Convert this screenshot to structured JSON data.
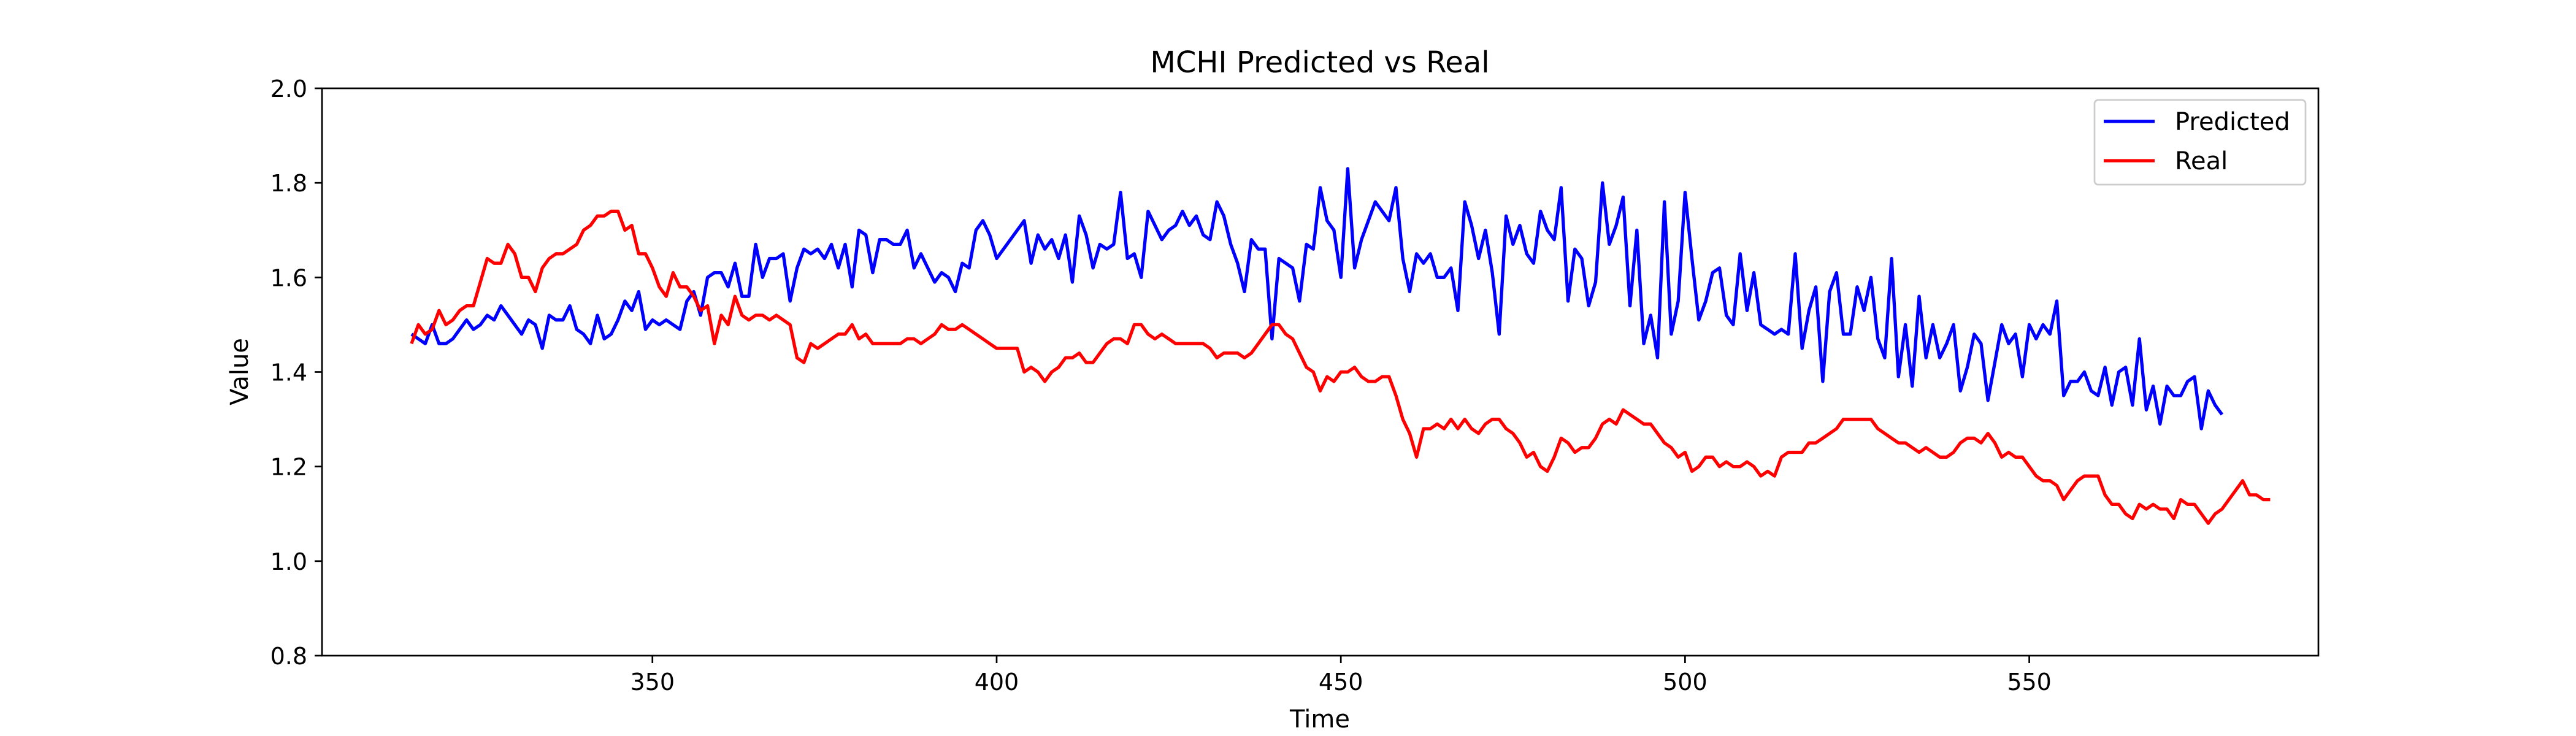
{
  "chart_data": {
    "type": "line",
    "title": "MCHI Predicted vs Real",
    "xlabel": "Time",
    "ylabel": "Value",
    "xlim": [
      302,
      592
    ],
    "ylim": [
      0.8,
      2.0
    ],
    "x_ticks": [
      {
        "value": 350,
        "label": "350"
      },
      {
        "value": 400,
        "label": "400"
      },
      {
        "value": 450,
        "label": "450"
      },
      {
        "value": 500,
        "label": "500"
      },
      {
        "value": 550,
        "label": "550"
      }
    ],
    "y_ticks": [
      {
        "value": 0.8,
        "label": "0.8"
      },
      {
        "value": 1.0,
        "label": "1.0"
      },
      {
        "value": 1.2,
        "label": "1.2"
      },
      {
        "value": 1.4,
        "label": "1.4"
      },
      {
        "value": 1.6,
        "label": "1.6"
      },
      {
        "value": 1.8,
        "label": "1.8"
      },
      {
        "value": 2.0,
        "label": "2.0"
      }
    ],
    "grid": false,
    "legend_position": "top-right",
    "x_start": 315,
    "series": [
      {
        "name": "Predicted",
        "color": "#0000ff",
        "values": [
          1.48,
          1.47,
          1.46,
          1.5,
          1.46,
          1.46,
          1.47,
          1.49,
          1.51,
          1.49,
          1.5,
          1.52,
          1.51,
          1.54,
          1.52,
          1.5,
          1.48,
          1.51,
          1.5,
          1.45,
          1.52,
          1.51,
          1.51,
          1.54,
          1.49,
          1.48,
          1.46,
          1.52,
          1.47,
          1.48,
          1.51,
          1.55,
          1.53,
          1.57,
          1.49,
          1.51,
          1.5,
          1.51,
          1.5,
          1.49,
          1.55,
          1.57,
          1.52,
          1.6,
          1.61,
          1.61,
          1.58,
          1.63,
          1.56,
          1.56,
          1.67,
          1.6,
          1.64,
          1.64,
          1.65,
          1.55,
          1.62,
          1.66,
          1.65,
          1.66,
          1.64,
          1.67,
          1.62,
          1.67,
          1.58,
          1.7,
          1.69,
          1.61,
          1.68,
          1.68,
          1.67,
          1.67,
          1.7,
          1.62,
          1.65,
          1.62,
          1.59,
          1.61,
          1.6,
          1.57,
          1.63,
          1.62,
          1.7,
          1.72,
          1.69,
          1.64,
          1.66,
          1.68,
          1.7,
          1.72,
          1.63,
          1.69,
          1.66,
          1.68,
          1.64,
          1.69,
          1.59,
          1.73,
          1.69,
          1.62,
          1.67,
          1.66,
          1.67,
          1.78,
          1.64,
          1.65,
          1.6,
          1.74,
          1.71,
          1.68,
          1.7,
          1.71,
          1.74,
          1.71,
          1.73,
          1.69,
          1.68,
          1.76,
          1.73,
          1.67,
          1.63,
          1.57,
          1.68,
          1.66,
          1.66,
          1.47,
          1.64,
          1.63,
          1.62,
          1.55,
          1.67,
          1.66,
          1.79,
          1.72,
          1.7,
          1.6,
          1.83,
          1.62,
          1.68,
          1.72,
          1.76,
          1.74,
          1.72,
          1.79,
          1.64,
          1.57,
          1.65,
          1.63,
          1.65,
          1.6,
          1.6,
          1.62,
          1.53,
          1.76,
          1.71,
          1.64,
          1.7,
          1.61,
          1.48,
          1.73,
          1.67,
          1.71,
          1.65,
          1.63,
          1.74,
          1.7,
          1.68,
          1.79,
          1.55,
          1.66,
          1.64,
          1.54,
          1.59,
          1.8,
          1.67,
          1.71,
          1.77,
          1.54,
          1.7,
          1.46,
          1.52,
          1.43,
          1.76,
          1.48,
          1.55,
          1.78,
          1.64,
          1.51,
          1.55,
          1.61,
          1.62,
          1.52,
          1.5,
          1.65,
          1.53,
          1.61,
          1.5,
          1.49,
          1.48,
          1.49,
          1.48,
          1.65,
          1.45,
          1.53,
          1.58,
          1.38,
          1.57,
          1.61,
          1.48,
          1.48,
          1.58,
          1.53,
          1.6,
          1.47,
          1.43,
          1.64,
          1.39,
          1.5,
          1.37,
          1.56,
          1.43,
          1.5,
          1.43,
          1.46,
          1.5,
          1.36,
          1.41,
          1.48,
          1.46,
          1.34,
          1.42,
          1.5,
          1.46,
          1.48,
          1.39,
          1.5,
          1.47,
          1.5,
          1.48,
          1.55,
          1.35,
          1.38,
          1.38,
          1.4,
          1.36,
          1.35,
          1.41,
          1.33,
          1.4,
          1.41,
          1.33,
          1.47,
          1.32,
          1.37,
          1.29,
          1.37,
          1.35,
          1.35,
          1.38,
          1.39,
          1.28,
          1.36,
          1.33,
          1.31
        ]
      },
      {
        "name": "Real",
        "color": "#ff0000",
        "values": [
          1.46,
          1.5,
          1.48,
          1.49,
          1.53,
          1.5,
          1.51,
          1.53,
          1.54,
          1.54,
          1.59,
          1.64,
          1.63,
          1.63,
          1.67,
          1.65,
          1.6,
          1.6,
          1.57,
          1.62,
          1.64,
          1.65,
          1.65,
          1.66,
          1.67,
          1.7,
          1.71,
          1.73,
          1.73,
          1.74,
          1.74,
          1.7,
          1.71,
          1.65,
          1.65,
          1.62,
          1.58,
          1.56,
          1.61,
          1.58,
          1.58,
          1.56,
          1.53,
          1.54,
          1.46,
          1.52,
          1.5,
          1.56,
          1.52,
          1.51,
          1.52,
          1.52,
          1.51,
          1.52,
          1.51,
          1.5,
          1.43,
          1.42,
          1.46,
          1.45,
          1.46,
          1.47,
          1.48,
          1.48,
          1.5,
          1.47,
          1.48,
          1.46,
          1.46,
          1.46,
          1.46,
          1.46,
          1.47,
          1.47,
          1.46,
          1.47,
          1.48,
          1.5,
          1.49,
          1.49,
          1.5,
          1.49,
          1.48,
          1.47,
          1.46,
          1.45,
          1.45,
          1.45,
          1.45,
          1.4,
          1.41,
          1.4,
          1.38,
          1.4,
          1.41,
          1.43,
          1.43,
          1.44,
          1.42,
          1.42,
          1.44,
          1.46,
          1.47,
          1.47,
          1.46,
          1.5,
          1.5,
          1.48,
          1.47,
          1.48,
          1.47,
          1.46,
          1.46,
          1.46,
          1.46,
          1.46,
          1.45,
          1.43,
          1.44,
          1.44,
          1.44,
          1.43,
          1.44,
          1.46,
          1.48,
          1.5,
          1.5,
          1.48,
          1.47,
          1.44,
          1.41,
          1.4,
          1.36,
          1.39,
          1.38,
          1.4,
          1.4,
          1.41,
          1.39,
          1.38,
          1.38,
          1.39,
          1.39,
          1.35,
          1.3,
          1.27,
          1.22,
          1.28,
          1.28,
          1.29,
          1.28,
          1.3,
          1.28,
          1.3,
          1.28,
          1.27,
          1.29,
          1.3,
          1.3,
          1.28,
          1.27,
          1.25,
          1.22,
          1.23,
          1.2,
          1.19,
          1.22,
          1.26,
          1.25,
          1.23,
          1.24,
          1.24,
          1.26,
          1.29,
          1.3,
          1.29,
          1.32,
          1.31,
          1.3,
          1.29,
          1.29,
          1.27,
          1.25,
          1.24,
          1.22,
          1.23,
          1.19,
          1.2,
          1.22,
          1.22,
          1.2,
          1.21,
          1.2,
          1.2,
          1.21,
          1.2,
          1.18,
          1.19,
          1.18,
          1.22,
          1.23,
          1.23,
          1.23,
          1.25,
          1.25,
          1.26,
          1.27,
          1.28,
          1.3,
          1.3,
          1.3,
          1.3,
          1.3,
          1.28,
          1.27,
          1.26,
          1.25,
          1.25,
          1.24,
          1.23,
          1.24,
          1.23,
          1.22,
          1.22,
          1.23,
          1.25,
          1.26,
          1.26,
          1.25,
          1.27,
          1.25,
          1.22,
          1.23,
          1.22,
          1.22,
          1.2,
          1.18,
          1.17,
          1.17,
          1.16,
          1.13,
          1.15,
          1.17,
          1.18,
          1.18,
          1.18,
          1.14,
          1.12,
          1.12,
          1.1,
          1.09,
          1.12,
          1.11,
          1.12,
          1.11,
          1.11,
          1.09,
          1.13,
          1.12,
          1.12,
          1.1,
          1.08,
          1.1,
          1.11,
          1.13,
          1.15,
          1.17,
          1.14,
          1.14,
          1.13,
          1.13
        ]
      }
    ]
  }
}
